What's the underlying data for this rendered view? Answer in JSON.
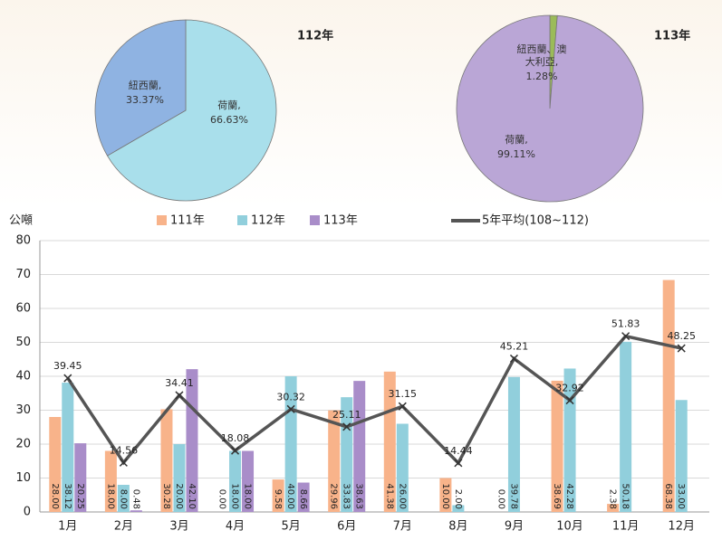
{
  "chart_data": [
    {
      "type": "pie",
      "title": "112年",
      "categories": [
        "荷蘭,",
        "紐西蘭,"
      ],
      "values": [
        66.63,
        33.37
      ],
      "value_labels": [
        "66.63%",
        "33.37%"
      ],
      "colors": [
        "#a9dfeb",
        "#8fb3e2"
      ]
    },
    {
      "type": "pie",
      "title": "113年",
      "categories": [
        "紐西蘭、澳大利亞,",
        "荷蘭,"
      ],
      "values": [
        1.28,
        99.11
      ],
      "value_labels": [
        "1.28%",
        "99.11%"
      ],
      "colors": [
        "#9bbb59",
        "#baa6d6"
      ]
    },
    {
      "type": "bar",
      "y_label": "公噸",
      "categories": [
        "1月",
        "2月",
        "3月",
        "4月",
        "5月",
        "6月",
        "7月",
        "8月",
        "9月",
        "10月",
        "11月",
        "12月"
      ],
      "ylim": [
        0,
        80
      ],
      "yticks": [
        0,
        10,
        20,
        30,
        40,
        50,
        60,
        70,
        80
      ],
      "grid": true,
      "series": [
        {
          "name": "111年",
          "color": "#f8b38a",
          "values": [
            28,
            18,
            30.28,
            0,
            9.58,
            29.96,
            41.38,
            10,
            0,
            38.69,
            2.38,
            68.38
          ],
          "value_labels": [
            "28.00",
            "18.00",
            "30.28",
            "0.00",
            "9.58",
            "29.96",
            "41.38",
            "10.00",
            "0.00",
            "38.69",
            "2.38",
            "68.38"
          ]
        },
        {
          "name": "112年",
          "color": "#91cfdc",
          "values": [
            38.12,
            8,
            20,
            18,
            40,
            33.83,
            26,
            2,
            39.78,
            42.28,
            50.18,
            33
          ],
          "value_labels": [
            "38.12",
            "8.00",
            "20.00",
            "18.00",
            "40.00",
            "33.83",
            "26.00",
            "2.00",
            "39.78",
            "42.28",
            "50.18",
            "33.00"
          ]
        },
        {
          "name": "113年",
          "color": "#a98dc9",
          "values": [
            20.25,
            0.48,
            42.1,
            18,
            8.66,
            38.63,
            null,
            null,
            null,
            null,
            null,
            null
          ],
          "value_labels": [
            "20.25",
            "0.48",
            "42.10",
            "18.00",
            "8.66",
            "38.63",
            null,
            null,
            null,
            null,
            null,
            null
          ]
        },
        {
          "name": "5年平均(108~112)",
          "type": "line",
          "color": "#555555",
          "values": [
            39.45,
            14.56,
            34.41,
            18.08,
            30.32,
            25.11,
            31.15,
            14.44,
            45.21,
            32.92,
            51.83,
            48.25
          ]
        }
      ]
    }
  ]
}
